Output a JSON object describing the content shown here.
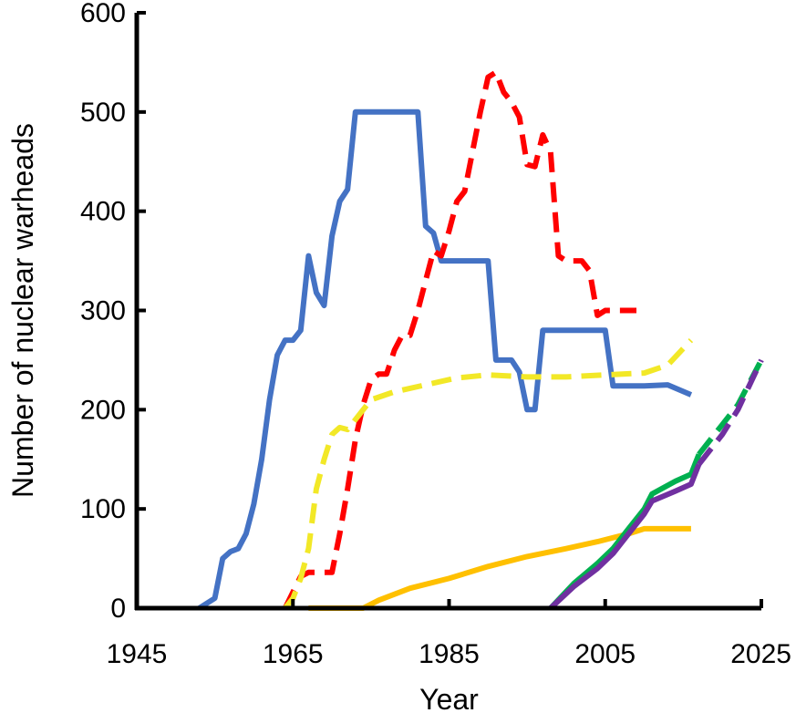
{
  "chart_data": {
    "type": "line",
    "title": "",
    "xlabel": "Year",
    "ylabel": "Number of  nuclear warheads",
    "xlim": [
      1945,
      2025
    ],
    "ylim": [
      0,
      600
    ],
    "xticks": [
      "1945",
      "1965",
      "1985",
      "2005",
      "2025"
    ],
    "yticks": [
      "0",
      "100",
      "200",
      "300",
      "400",
      "500",
      "600"
    ],
    "grid": false,
    "legend": "none",
    "series": [
      {
        "color": "#4472C4",
        "style": "solid",
        "points": [
          [
            1953,
            0
          ],
          [
            1955,
            10
          ],
          [
            1956,
            50
          ],
          [
            1957,
            57
          ],
          [
            1958,
            60
          ],
          [
            1959,
            75
          ],
          [
            1960,
            105
          ],
          [
            1961,
            150
          ],
          [
            1962,
            210
          ],
          [
            1963,
            255
          ],
          [
            1964,
            270
          ],
          [
            1965,
            270
          ],
          [
            1966,
            280
          ],
          [
            1967,
            355
          ],
          [
            1968,
            318
          ],
          [
            1969,
            305
          ],
          [
            1970,
            375
          ],
          [
            1971,
            410
          ],
          [
            1972,
            422
          ],
          [
            1973,
            500
          ],
          [
            1976,
            500
          ],
          [
            1977,
            500
          ],
          [
            1981,
            500
          ],
          [
            1982,
            385
          ],
          [
            1983,
            378
          ],
          [
            1984,
            350
          ],
          [
            1990,
            350
          ],
          [
            1991,
            250
          ],
          [
            1993,
            250
          ],
          [
            1994,
            238
          ],
          [
            1995,
            200
          ],
          [
            1996,
            200
          ],
          [
            1997,
            280
          ],
          [
            2005,
            280
          ],
          [
            2006,
            224
          ],
          [
            2010,
            224
          ],
          [
            2013,
            225
          ],
          [
            2016,
            215
          ]
        ]
      },
      {
        "color": "#FF0000",
        "style": "dashed",
        "points": [
          [
            1964,
            0
          ],
          [
            1966,
            32
          ],
          [
            1967,
            36
          ],
          [
            1968,
            36
          ],
          [
            1969,
            36
          ],
          [
            1970,
            36
          ],
          [
            1971,
            75
          ],
          [
            1972,
            120
          ],
          [
            1973,
            170
          ],
          [
            1974,
            205
          ],
          [
            1975,
            230
          ],
          [
            1976,
            236
          ],
          [
            1977,
            236
          ],
          [
            1978,
            260
          ],
          [
            1979,
            275
          ],
          [
            1980,
            275
          ],
          [
            1981,
            300
          ],
          [
            1982,
            330
          ],
          [
            1983,
            360
          ],
          [
            1984,
            355
          ],
          [
            1985,
            380
          ],
          [
            1986,
            410
          ],
          [
            1987,
            420
          ],
          [
            1988,
            460
          ],
          [
            1989,
            500
          ],
          [
            1990,
            535
          ],
          [
            1991,
            540
          ],
          [
            1992,
            520
          ],
          [
            1993,
            510
          ],
          [
            1994,
            495
          ],
          [
            1995,
            447
          ],
          [
            1996,
            445
          ],
          [
            1997,
            477
          ],
          [
            1998,
            460
          ],
          [
            1999,
            355
          ],
          [
            2000,
            350
          ],
          [
            2002,
            350
          ],
          [
            2003,
            340
          ],
          [
            2004,
            295
          ],
          [
            2005,
            300
          ],
          [
            2009,
            300
          ]
        ]
      },
      {
        "color": "#F2E827",
        "style": "dashed",
        "points": [
          [
            1964,
            0
          ],
          [
            1965,
            10
          ],
          [
            1966,
            30
          ],
          [
            1967,
            60
          ],
          [
            1968,
            120
          ],
          [
            1969,
            150
          ],
          [
            1970,
            175
          ],
          [
            1971,
            182
          ],
          [
            1972,
            180
          ],
          [
            1973,
            190
          ],
          [
            1975,
            210
          ],
          [
            1978,
            218
          ],
          [
            1982,
            225
          ],
          [
            1986,
            232
          ],
          [
            1990,
            235
          ],
          [
            1995,
            233
          ],
          [
            2000,
            233
          ],
          [
            2005,
            235
          ],
          [
            2010,
            237
          ],
          [
            2013,
            245
          ],
          [
            2016,
            270
          ]
        ]
      },
      {
        "color": "#FFC000",
        "style": "solid",
        "points": [
          [
            1967,
            0
          ],
          [
            1974,
            0
          ],
          [
            1976,
            8
          ],
          [
            1980,
            20
          ],
          [
            1985,
            30
          ],
          [
            1990,
            42
          ],
          [
            1995,
            52
          ],
          [
            2000,
            60
          ],
          [
            2004,
            67
          ],
          [
            2008,
            75
          ],
          [
            2010,
            80
          ],
          [
            2016,
            80
          ]
        ]
      },
      {
        "color": "#00B050",
        "style": "solid",
        "points": [
          [
            1998,
            0
          ],
          [
            2001,
            25
          ],
          [
            2004,
            45
          ],
          [
            2006,
            60
          ],
          [
            2008,
            80
          ],
          [
            2010,
            100
          ],
          [
            2011,
            115
          ],
          [
            2014,
            128
          ],
          [
            2016,
            135
          ],
          [
            2017,
            155
          ]
        ]
      },
      {
        "color": "#00B050",
        "style": "dashed",
        "points": [
          [
            2017,
            155
          ],
          [
            2020,
            185
          ],
          [
            2022,
            205
          ],
          [
            2025,
            250
          ]
        ]
      },
      {
        "color": "#7030A0",
        "style": "solid",
        "points": [
          [
            1998,
            0
          ],
          [
            2001,
            22
          ],
          [
            2004,
            40
          ],
          [
            2006,
            55
          ],
          [
            2008,
            75
          ],
          [
            2010,
            95
          ],
          [
            2011,
            108
          ],
          [
            2014,
            118
          ],
          [
            2016,
            125
          ],
          [
            2017,
            145
          ]
        ]
      },
      {
        "color": "#7030A0",
        "style": "dashed",
        "points": [
          [
            2017,
            145
          ],
          [
            2020,
            175
          ],
          [
            2022,
            200
          ],
          [
            2025,
            250
          ]
        ]
      }
    ]
  }
}
